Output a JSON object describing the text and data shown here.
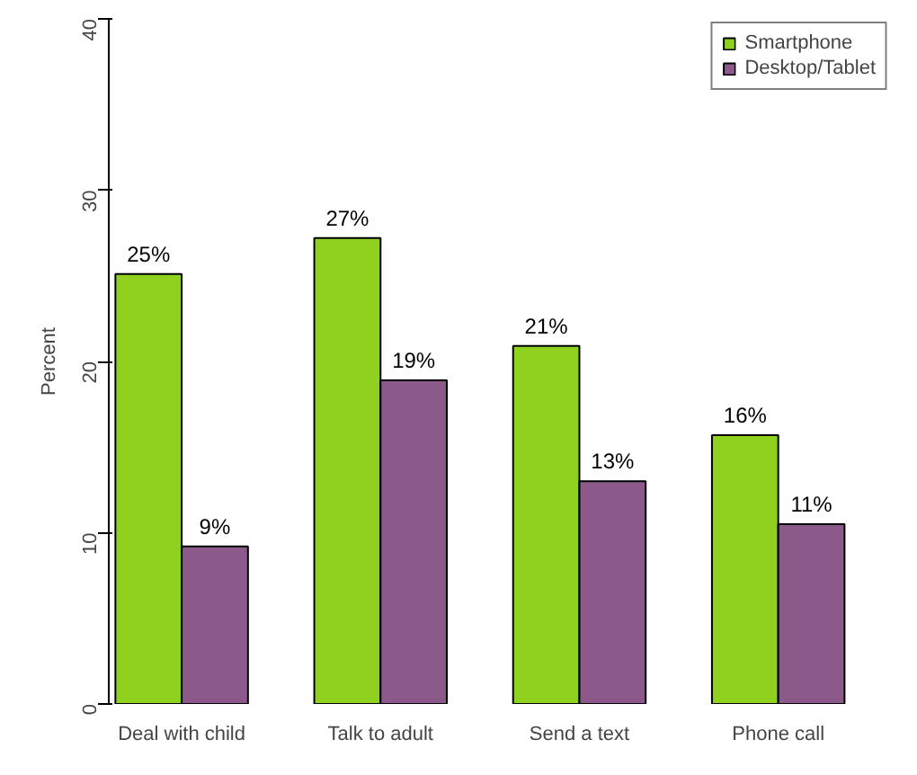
{
  "chart_data": {
    "type": "bar",
    "ylabel": "Percent",
    "categories": [
      "Deal with child",
      "Talk to adult",
      "Send a text",
      "Phone call"
    ],
    "series": [
      {
        "name": "Smartphone",
        "color": "#8fd11e",
        "values": [
          25.1,
          27.2,
          20.9,
          15.7
        ],
        "value_labels": [
          "25%",
          "27%",
          "21%",
          "16%"
        ]
      },
      {
        "name": "Desktop/Tablet",
        "color": "#8b5a8a",
        "values": [
          9.2,
          18.9,
          13.0,
          10.5
        ],
        "value_labels": [
          "9%",
          "19%",
          "13%",
          "11%"
        ]
      }
    ],
    "ylim": [
      0,
      40
    ],
    "yticks": [
      0,
      10,
      20,
      30,
      40
    ],
    "legend": "top right",
    "grid": false
  }
}
